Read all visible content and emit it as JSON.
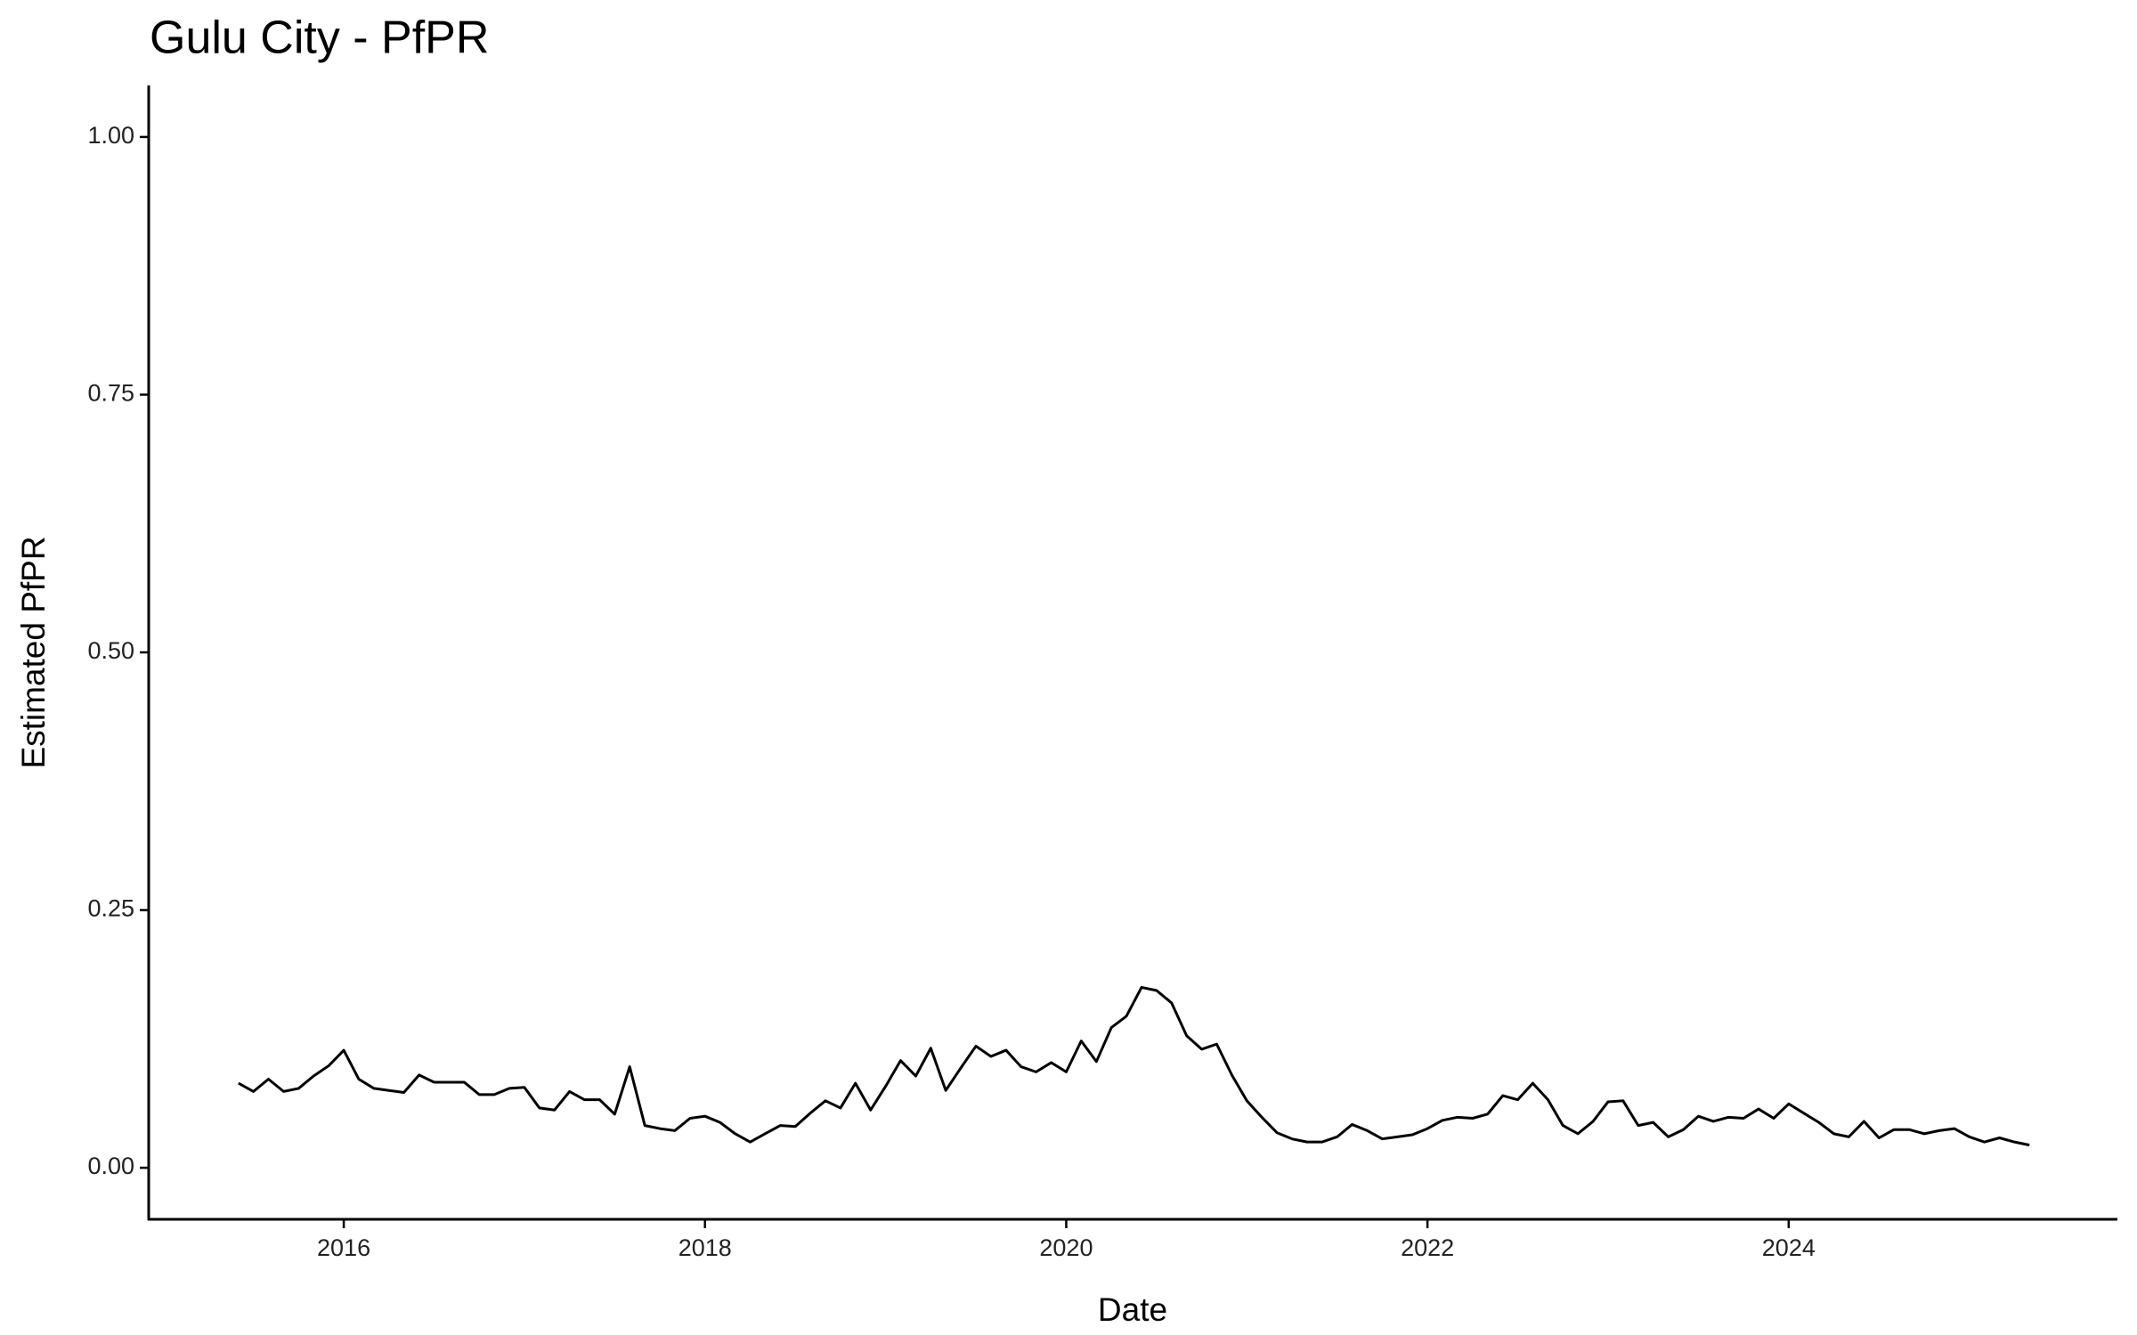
{
  "chart_data": {
    "type": "line",
    "title": "Gulu City - PfPR",
    "x_label": "Date",
    "y_label": "Estimated PfPR",
    "x": [
      2015.417,
      2015.5,
      2015.583,
      2015.667,
      2015.75,
      2015.833,
      2015.917,
      2016,
      2016.083,
      2016.167,
      2016.25,
      2016.333,
      2016.417,
      2016.5,
      2016.583,
      2016.667,
      2016.75,
      2016.833,
      2016.917,
      2017,
      2017.083,
      2017.167,
      2017.25,
      2017.333,
      2017.417,
      2017.5,
      2017.583,
      2017.667,
      2017.75,
      2017.833,
      2017.917,
      2018,
      2018.083,
      2018.167,
      2018.25,
      2018.333,
      2018.417,
      2018.5,
      2018.583,
      2018.667,
      2018.75,
      2018.833,
      2018.917,
      2019,
      2019.083,
      2019.167,
      2019.25,
      2019.333,
      2019.417,
      2019.5,
      2019.583,
      2019.667,
      2019.75,
      2019.833,
      2019.917,
      2020,
      2020.083,
      2020.167,
      2020.25,
      2020.333,
      2020.417,
      2020.5,
      2020.583,
      2020.667,
      2020.75,
      2020.833,
      2020.917,
      2021,
      2021.083,
      2021.167,
      2021.25,
      2021.333,
      2021.417,
      2021.5,
      2021.583,
      2021.667,
      2021.75,
      2021.833,
      2021.917,
      2022,
      2022.083,
      2022.167,
      2022.25,
      2022.333,
      2022.417,
      2022.5,
      2022.583,
      2022.667,
      2022.75,
      2022.833,
      2022.917,
      2023,
      2023.083,
      2023.167,
      2023.25,
      2023.333,
      2023.417,
      2023.5,
      2023.583,
      2023.667,
      2023.75,
      2023.833,
      2023.917,
      2024,
      2024.083,
      2024.167,
      2024.25,
      2024.333,
      2024.417,
      2024.5,
      2024.583,
      2024.667,
      2024.75,
      2024.833,
      2024.917,
      2025,
      2025.083,
      2025.167,
      2025.25,
      2025.333
    ],
    "series": [
      {
        "color": "#000000",
        "values": [
          0.082,
          0.074,
          0.086,
          0.074,
          0.077,
          0.089,
          0.099,
          0.114,
          0.086,
          0.077,
          0.075,
          0.073,
          0.09,
          0.083,
          0.083,
          0.083,
          0.071,
          0.071,
          0.077,
          0.078,
          0.058,
          0.056,
          0.074,
          0.066,
          0.066,
          0.052,
          0.098,
          0.041,
          0.038,
          0.036,
          0.048,
          0.05,
          0.044,
          0.033,
          0.025,
          0.033,
          0.041,
          0.04,
          0.053,
          0.065,
          0.058,
          0.082,
          0.056,
          0.079,
          0.104,
          0.089,
          0.116,
          0.075,
          0.097,
          0.118,
          0.108,
          0.114,
          0.098,
          0.093,
          0.102,
          0.093,
          0.123,
          0.103,
          0.136,
          0.147,
          0.175,
          0.172,
          0.16,
          0.128,
          0.115,
          0.12,
          0.09,
          0.065,
          0.049,
          0.034,
          0.028,
          0.025,
          0.025,
          0.03,
          0.042,
          0.036,
          0.028,
          0.03,
          0.032,
          0.038,
          0.046,
          0.049,
          0.048,
          0.052,
          0.07,
          0.066,
          0.082,
          0.066,
          0.041,
          0.033,
          0.045,
          0.064,
          0.065,
          0.041,
          0.044,
          0.03,
          0.037,
          0.05,
          0.045,
          0.049,
          0.048,
          0.057,
          0.048,
          0.062,
          0.053,
          0.044,
          0.033,
          0.03,
          0.045,
          0.029,
          0.037,
          0.037,
          0.033,
          0.036,
          0.038,
          0.03,
          0.025,
          0.029,
          0.025,
          0.022
        ]
      }
    ],
    "xlim": [
      2014.92,
      2025.82
    ],
    "xticks": [
      2016,
      2018,
      2020,
      2022,
      2024
    ],
    "ylim": [
      -0.05,
      1.05
    ],
    "yticks": [
      {
        "value": 0,
        "label": "0.00"
      },
      {
        "value": 0.25,
        "label": "0.25"
      },
      {
        "value": 0.5,
        "label": "0.50"
      },
      {
        "value": 0.75,
        "label": "0.75"
      },
      {
        "value": 1,
        "label": "1.00"
      }
    ],
    "grid": false
  }
}
